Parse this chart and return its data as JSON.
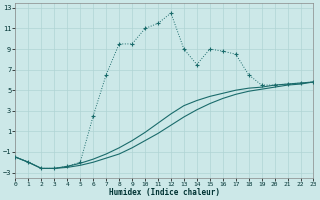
{
  "xlabel": "Humidex (Indice chaleur)",
  "background_color": "#cce8e8",
  "grid_color": "#b0d4d4",
  "line_color": "#1a6b6b",
  "xlim": [
    0,
    23
  ],
  "ylim": [
    -3.5,
    13.5
  ],
  "xticks": [
    0,
    1,
    2,
    3,
    4,
    5,
    6,
    7,
    8,
    9,
    10,
    11,
    12,
    13,
    14,
    15,
    16,
    17,
    18,
    19,
    20,
    21,
    22,
    23
  ],
  "yticks": [
    -3,
    -1,
    1,
    3,
    5,
    7,
    9,
    11,
    13
  ],
  "line1_x": [
    0,
    1,
    2,
    3,
    4,
    5,
    6,
    7,
    8,
    9,
    10,
    11,
    12,
    13,
    14,
    15,
    16,
    17,
    18,
    19,
    20,
    21,
    22,
    23
  ],
  "line1_y": [
    -1.5,
    -2.0,
    -2.6,
    -2.6,
    -2.5,
    -2.3,
    -2.0,
    -1.6,
    -1.2,
    -0.6,
    0.1,
    0.8,
    1.6,
    2.4,
    3.1,
    3.7,
    4.2,
    4.6,
    4.9,
    5.1,
    5.3,
    5.5,
    5.6,
    5.8
  ],
  "line2_x": [
    0,
    1,
    2,
    3,
    4,
    5,
    6,
    7,
    8,
    9,
    10,
    11,
    12,
    13,
    14,
    15,
    16,
    17,
    18,
    19,
    20,
    21,
    22,
    23
  ],
  "line2_y": [
    -1.5,
    -2.0,
    -2.6,
    -2.6,
    -2.4,
    -2.1,
    -1.7,
    -1.2,
    -0.6,
    0.1,
    0.9,
    1.8,
    2.7,
    3.5,
    4.0,
    4.4,
    4.7,
    5.0,
    5.2,
    5.3,
    5.5,
    5.6,
    5.7,
    5.8
  ],
  "dotted_x": [
    0,
    1,
    2,
    3,
    4,
    5,
    6,
    7,
    8,
    9,
    10,
    11,
    12,
    13,
    14,
    15,
    16,
    17,
    18,
    19,
    20,
    21,
    22,
    23
  ],
  "dotted_y": [
    -1.5,
    -2.0,
    -2.6,
    -2.6,
    -2.4,
    -2.0,
    2.5,
    6.5,
    9.5,
    9.5,
    11.0,
    11.5,
    12.5,
    9.0,
    7.5,
    9.0,
    8.8,
    8.5,
    6.5,
    5.5,
    5.5,
    5.6,
    5.7,
    5.8
  ]
}
